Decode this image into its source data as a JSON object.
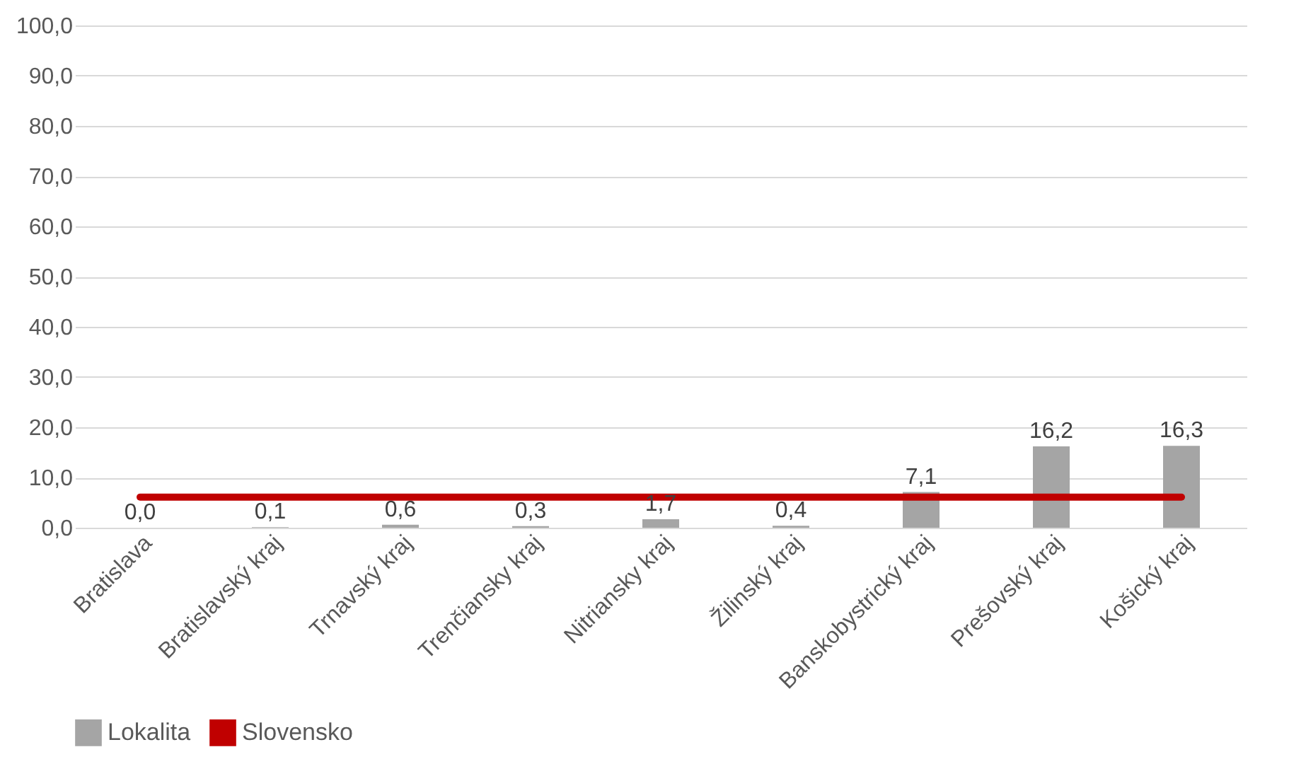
{
  "chart_data": {
    "type": "bar",
    "categories": [
      "Bratislava",
      "Bratislavský kraj",
      "Trnavský kraj",
      "Trenčiansky kraj",
      "Nitriansky kraj",
      "Žilinský kraj",
      "Banskobystrický kraj",
      "Prešovský kraj",
      "Košický kraj"
    ],
    "series": [
      {
        "name": "Lokalita",
        "color": "#a5a5a5",
        "values": [
          0.0,
          0.1,
          0.6,
          0.3,
          1.7,
          0.4,
          7.1,
          16.2,
          16.3
        ],
        "value_labels": [
          "0,0",
          "0,1",
          "0,6",
          "0,3",
          "1,7",
          "0,4",
          "7,1",
          "16,2",
          "16,3"
        ]
      },
      {
        "name": "Slovensko",
        "type": "line",
        "color": "#c00000",
        "values": [
          6.1,
          6.1,
          6.1,
          6.1,
          6.1,
          6.1,
          6.1,
          6.1,
          6.1
        ]
      }
    ],
    "ylim": [
      0,
      100
    ],
    "yticks": [
      {
        "value": 0,
        "label": "0,0"
      },
      {
        "value": 10,
        "label": "10,0"
      },
      {
        "value": 20,
        "label": "20,0"
      },
      {
        "value": 30,
        "label": "30,0"
      },
      {
        "value": 40,
        "label": "40,0"
      },
      {
        "value": 50,
        "label": "50,0"
      },
      {
        "value": 60,
        "label": "60,0"
      },
      {
        "value": 70,
        "label": "70,0"
      },
      {
        "value": 80,
        "label": "80,0"
      },
      {
        "value": 90,
        "label": "90,0"
      },
      {
        "value": 100,
        "label": "100,0"
      }
    ],
    "grid": "y",
    "legend": "bottom",
    "marker": "none"
  }
}
